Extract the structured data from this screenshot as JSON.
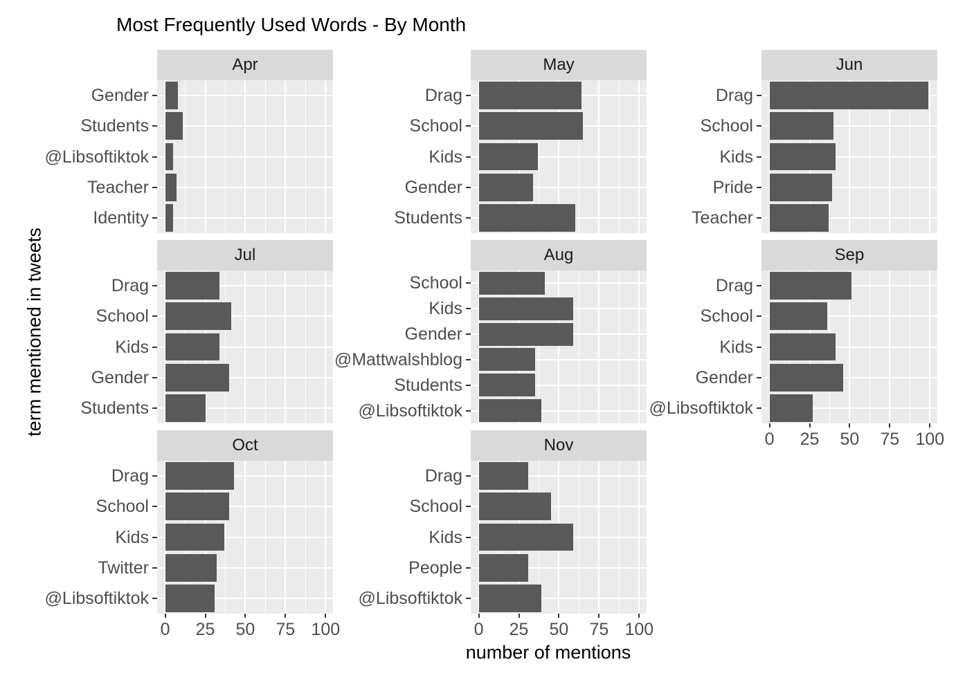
{
  "chart_data": {
    "type": "bar",
    "orientation": "horizontal",
    "title": "Most Frequently Used Words - By Month",
    "xlabel": "number of mentions",
    "ylabel": "term mentioned in tweets",
    "xlim": [
      0,
      100
    ],
    "x_major_ticks": [
      0,
      25,
      50,
      75,
      100
    ],
    "x_minor_gridlines": [
      12.5,
      37.5,
      62.5,
      87.5
    ],
    "grid": true,
    "legend_position": "none",
    "colors": {
      "bar": "#595959",
      "panel_background": "#EBEBEB",
      "strip_background": "#D9D9D9",
      "gridline": "#FFFFFF",
      "axis_text": "#4D4D4D",
      "strip_text": "#1A1A1A",
      "tick_mark": "#333333",
      "title_text": "#000000"
    },
    "facets": [
      {
        "label": "Apr",
        "row": 0,
        "col": 0,
        "show_x_axis": false,
        "categories": [
          "Gender",
          "Students",
          "@Libsoftiktok",
          "Teacher",
          "Identity"
        ],
        "values": [
          8,
          11,
          5,
          7,
          5
        ]
      },
      {
        "label": "May",
        "row": 0,
        "col": 1,
        "show_x_axis": false,
        "categories": [
          "Drag",
          "School",
          "Kids",
          "Gender",
          "Students"
        ],
        "values": [
          64,
          65,
          37,
          34,
          60
        ]
      },
      {
        "label": "Jun",
        "row": 0,
        "col": 2,
        "show_x_axis": false,
        "categories": [
          "Drag",
          "School",
          "Kids",
          "Pride",
          "Teacher"
        ],
        "values": [
          99,
          40,
          41,
          39,
          37
        ]
      },
      {
        "label": "Jul",
        "row": 1,
        "col": 0,
        "show_x_axis": false,
        "categories": [
          "Drag",
          "School",
          "Kids",
          "Gender",
          "Students"
        ],
        "values": [
          34,
          41,
          34,
          40,
          25
        ]
      },
      {
        "label": "Aug",
        "row": 1,
        "col": 1,
        "show_x_axis": false,
        "categories": [
          "School",
          "Kids",
          "Gender",
          "@Mattwalshblog",
          "Students",
          "@Libsoftiktok"
        ],
        "values": [
          41,
          59,
          59,
          35,
          35,
          39
        ]
      },
      {
        "label": "Sep",
        "row": 1,
        "col": 2,
        "show_x_axis": true,
        "categories": [
          "Drag",
          "School",
          "Kids",
          "Gender",
          "@Libsoftiktok"
        ],
        "values": [
          51,
          36,
          41,
          46,
          27
        ]
      },
      {
        "label": "Oct",
        "row": 2,
        "col": 0,
        "show_x_axis": true,
        "categories": [
          "Drag",
          "School",
          "Kids",
          "Twitter",
          "@Libsoftiktok"
        ],
        "values": [
          43,
          40,
          37,
          32,
          31
        ]
      },
      {
        "label": "Nov",
        "row": 2,
        "col": 1,
        "show_x_axis": true,
        "categories": [
          "Drag",
          "School",
          "Kids",
          "People",
          "@Libsoftiktok"
        ],
        "values": [
          31,
          45,
          59,
          31,
          39
        ]
      }
    ]
  }
}
